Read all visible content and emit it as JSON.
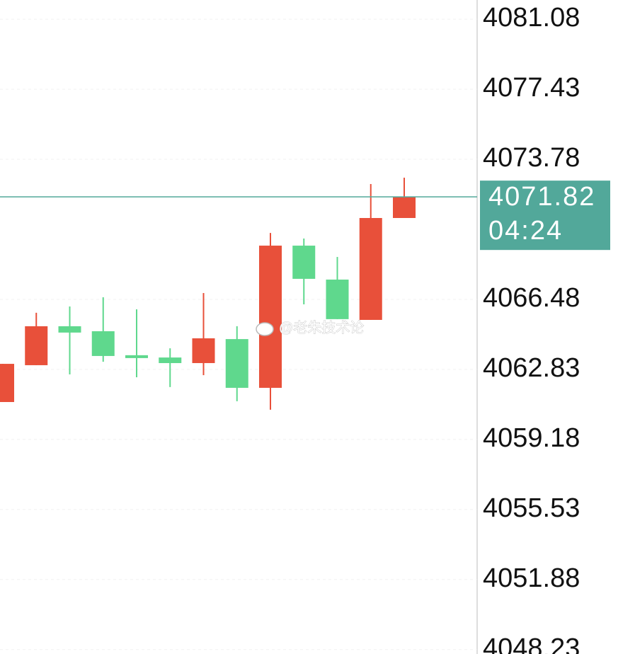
{
  "chart_data": {
    "type": "candlestick",
    "open": [
      4061.13,
      4063.05,
      4065.08,
      4064.82,
      4063.57,
      4063.45,
      4063.16,
      4064.41,
      4061.87,
      4069.28,
      4067.51,
      4065.41,
      4070.72
    ],
    "high": [
      4063.12,
      4065.78,
      4066.11,
      4066.59,
      4065.96,
      4063.93,
      4066.81,
      4065.08,
      4069.94,
      4069.65,
      4068.69,
      4072.49,
      4072.82
    ],
    "low": [
      4061.13,
      4063.05,
      4062.57,
      4063.23,
      4062.42,
      4061.91,
      4062.53,
      4061.17,
      4060.73,
      4066.22,
      4065.45,
      4065.41,
      4070.72
    ],
    "close": [
      4063.12,
      4065.08,
      4064.75,
      4063.53,
      4063.42,
      4063.16,
      4064.45,
      4061.87,
      4069.28,
      4067.55,
      4065.45,
      4070.72,
      4071.82
    ],
    "up_color": "#e8503a",
    "down_color": "#5fd88d",
    "ylim": [
      4048.0,
      4082.08
    ],
    "yticks": [
      4081.08,
      4077.43,
      4073.78,
      4066.48,
      4062.83,
      4059.18,
      4055.53,
      4051.88,
      4048.23
    ],
    "grid": true,
    "last_price": 4071.82,
    "last_price_color": "#52a89a",
    "countdown": "04:24",
    "watermark": "@老朱技术论"
  }
}
